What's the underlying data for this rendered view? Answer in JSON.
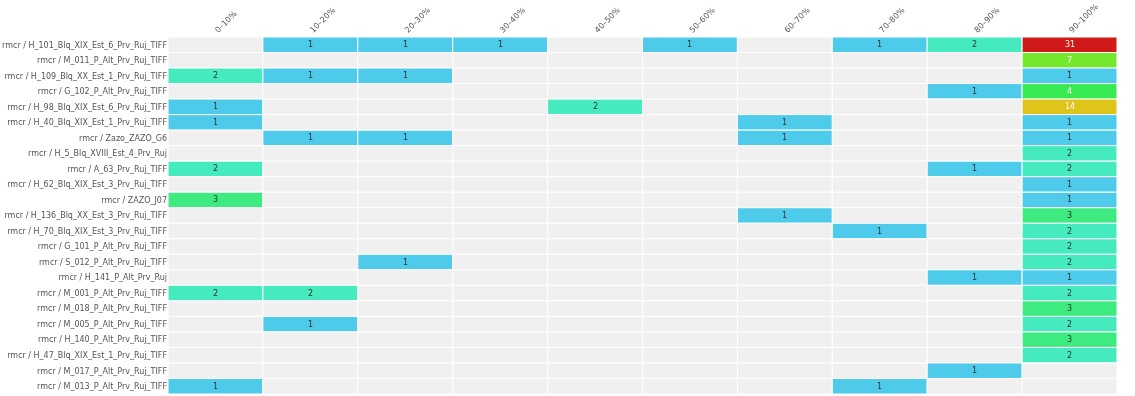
{
  "chart_data": {
    "type": "heatmap",
    "categories": [
      "0–10%",
      "10–20%",
      "20–30%",
      "30–40%",
      "40–50%",
      "50–60%",
      "60–70%",
      "70–80%",
      "80–90%",
      "90–100%"
    ],
    "y_categories": [
      "rmcr / H_101_Blq_XIX_Est_6_Prv_Ruj_TIFF",
      "rmcr / M_011_P_Alt_Prv_Ruj_TIFF",
      "rmcr / H_109_Blq_XX_Est_1_Prv_Ruj_TIFF",
      "rmcr / G_102_P_Alt_Prv_Ruj_TIFF",
      "rmcr / H_98_Blq_XIX_Est_6_Prv_Ruj_TIFF",
      "rmcr / H_40_Blq_XIX_Est_1_Prv_Ruj_TIFF",
      "rmcr / Zazo_ZAZO_G6",
      "rmcr / H_5_Blq_XVIII_Est_4_Prv_Ruj",
      "rmcr / A_63_Prv_Ruj_TIFF",
      "rmcr / H_62_Blq_XIX_Est_3_Prv_Ruj_TIFF",
      "rmcr / ZAZO_J07",
      "rmcr / H_136_Blq_XX_Est_3_Prv_Ruj_TIFF",
      "rmcr / H_70_Blq_XIX_Est_3_Prv_Ruj_TIFF",
      "rmcr / G_101_P_Alt_Prv_Ruj_TIFF",
      "rmcr / S_012_P_Alt_Prv_Ruj_TIFF",
      "rmcr / H_141_P_Alt_Prv_Ruj",
      "rmcr / M_001_P_Alt_Prv_Ruj_TIFF",
      "rmcr / M_018_P_Alt_Prv_Ruj_TIFF",
      "rmcr / M_005_P_Alt_Prv_Ruj_TIFF",
      "rmcr / H_140_P_Alt_Prv_Ruj_TIFF",
      "rmcr / H_47_Blq_XIX_Est_1_Prv_Ruj_TIFF",
      "rmcr / M_017_P_Alt_Prv_Ruj_TIFF",
      "rmcr / M_013_P_Alt_Prv_Ruj_TIFF"
    ],
    "cells": [
      [
        null,
        1,
        1,
        1,
        null,
        1,
        null,
        1,
        2,
        31
      ],
      [
        null,
        null,
        null,
        null,
        null,
        null,
        null,
        null,
        null,
        7
      ],
      [
        2,
        1,
        1,
        null,
        null,
        null,
        null,
        null,
        null,
        1
      ],
      [
        null,
        null,
        null,
        null,
        null,
        null,
        null,
        null,
        1,
        4
      ],
      [
        1,
        null,
        null,
        null,
        2,
        null,
        null,
        null,
        null,
        14
      ],
      [
        1,
        null,
        null,
        null,
        null,
        null,
        1,
        null,
        null,
        1
      ],
      [
        null,
        1,
        1,
        null,
        null,
        null,
        1,
        null,
        null,
        1
      ],
      [
        null,
        null,
        null,
        null,
        null,
        null,
        null,
        null,
        null,
        2
      ],
      [
        2,
        null,
        null,
        null,
        null,
        null,
        null,
        null,
        1,
        2
      ],
      [
        null,
        null,
        null,
        null,
        null,
        null,
        null,
        null,
        null,
        1
      ],
      [
        3,
        null,
        null,
        null,
        null,
        null,
        null,
        null,
        null,
        1
      ],
      [
        null,
        null,
        null,
        null,
        null,
        null,
        1,
        null,
        null,
        3
      ],
      [
        null,
        null,
        null,
        null,
        null,
        null,
        null,
        1,
        null,
        2
      ],
      [
        null,
        null,
        null,
        null,
        null,
        null,
        null,
        null,
        null,
        2
      ],
      [
        null,
        null,
        1,
        null,
        null,
        null,
        null,
        null,
        null,
        2
      ],
      [
        null,
        null,
        null,
        null,
        null,
        null,
        null,
        null,
        1,
        1
      ],
      [
        2,
        2,
        null,
        null,
        null,
        null,
        null,
        null,
        null,
        2
      ],
      [
        null,
        null,
        null,
        null,
        null,
        null,
        null,
        null,
        null,
        3
      ],
      [
        null,
        1,
        null,
        null,
        null,
        null,
        null,
        null,
        null,
        2
      ],
      [
        null,
        null,
        null,
        null,
        null,
        null,
        null,
        null,
        null,
        3
      ],
      [
        null,
        null,
        null,
        null,
        null,
        null,
        null,
        null,
        null,
        2
      ],
      [
        null,
        null,
        null,
        null,
        null,
        null,
        null,
        null,
        1,
        null
      ],
      [
        1,
        null,
        null,
        null,
        null,
        null,
        null,
        1,
        null,
        null
      ]
    ],
    "data_labels": true
  }
}
